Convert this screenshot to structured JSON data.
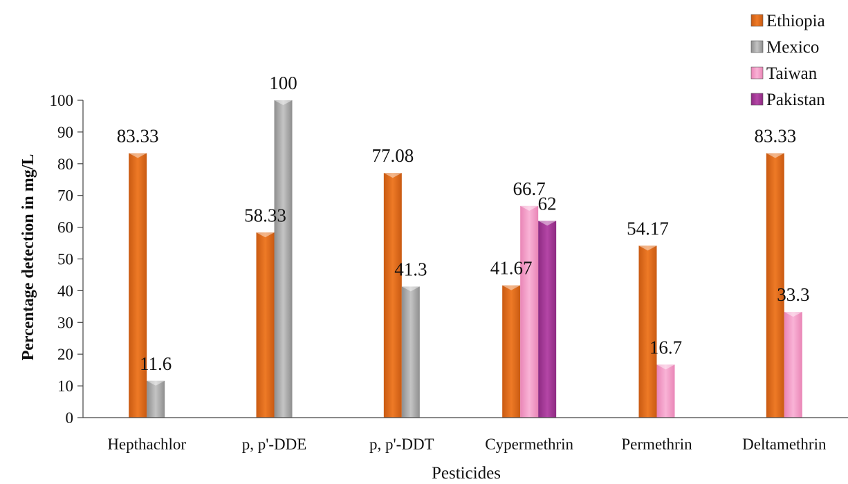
{
  "chart_data": {
    "type": "bar",
    "title": "",
    "xlabel": "Pesticides",
    "ylabel": "Percentage detection in mg/L",
    "ylim": [
      0,
      100
    ],
    "yticks": [
      0,
      10,
      20,
      30,
      40,
      50,
      60,
      70,
      80,
      90,
      100
    ],
    "grid": false,
    "legend_position": "top-right",
    "categories": [
      "Hepthachlor",
      "p, p'-DDE",
      "p, p'-DDT",
      "Cypermethrin",
      "Permethrin",
      "Deltamethrin"
    ],
    "series": [
      {
        "name": "Ethiopia",
        "color": "#E36C1B",
        "values": [
          83.33,
          58.33,
          77.08,
          41.67,
          54.17,
          83.33
        ],
        "labels": [
          "83.33",
          "58.33",
          "77.08",
          "41.67",
          "54.17",
          "83.33"
        ]
      },
      {
        "name": "Mexico",
        "color": "#A6A6A6",
        "values": [
          11.6,
          100,
          41.3,
          null,
          null,
          null
        ],
        "labels": [
          "11.6",
          "100",
          "41.3",
          "",
          "",
          ""
        ]
      },
      {
        "name": "Taiwan",
        "color": "#F29AC6",
        "values": [
          null,
          null,
          null,
          66.7,
          16.7,
          33.3
        ],
        "labels": [
          "",
          "",
          "",
          "66.7",
          "16.7",
          "33.3"
        ]
      },
      {
        "name": "Pakistan",
        "color": "#A8379A",
        "values": [
          null,
          null,
          null,
          62,
          null,
          null
        ],
        "labels": [
          "",
          "",
          "",
          "62",
          "",
          ""
        ]
      }
    ]
  }
}
